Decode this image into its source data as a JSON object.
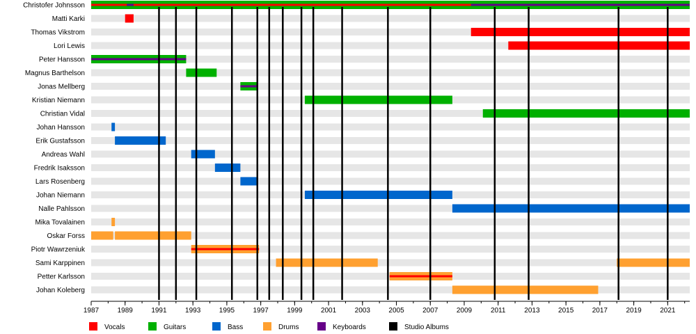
{
  "chart_data": {
    "type": "timeline",
    "title": "",
    "xlabel": "",
    "ylabel": "",
    "xlim": [
      1987,
      2022.3
    ],
    "x_ticks": [
      "1987",
      "1989",
      "1991",
      "1993",
      "1995",
      "1997",
      "1999",
      "2001",
      "2003",
      "2005",
      "2007",
      "2009",
      "2011",
      "2013",
      "2015",
      "2017",
      "2019",
      "2021"
    ],
    "members": [
      {
        "name": "Christofer Johnsson"
      },
      {
        "name": "Matti Karki"
      },
      {
        "name": "Thomas Vikstrom"
      },
      {
        "name": "Lori Lewis"
      },
      {
        "name": "Peter Hansson"
      },
      {
        "name": "Magnus Barthelson"
      },
      {
        "name": "Jonas Mellberg"
      },
      {
        "name": "Kristian Niemann"
      },
      {
        "name": "Christian Vidal"
      },
      {
        "name": "Johan Hansson"
      },
      {
        "name": "Erik Gustafsson"
      },
      {
        "name": "Andreas Wahl"
      },
      {
        "name": "Fredrik Isaksson"
      },
      {
        "name": "Lars Rosenberg"
      },
      {
        "name": "Johan Niemann"
      },
      {
        "name": "Nalle Pahlsson"
      },
      {
        "name": "Mika Tovalainen"
      },
      {
        "name": "Oskar Forss"
      },
      {
        "name": "Piotr Wawrzeniuk"
      },
      {
        "name": "Sami Karppinen"
      },
      {
        "name": "Petter Karlsson"
      },
      {
        "name": "Johan Koleberg"
      }
    ],
    "bars": [
      {
        "member": 0,
        "role": "guitars",
        "start": 1987.0,
        "end": 2022.3
      },
      {
        "member": 0,
        "role": "keyboards",
        "start": 1987.0,
        "end": 2022.3,
        "stripe": true
      },
      {
        "member": 0,
        "role": "vocals",
        "start": 1987.0,
        "end": 1989.1,
        "stripe": true
      },
      {
        "member": 0,
        "role": "vocals",
        "start": 1989.5,
        "end": 2009.4,
        "stripe": true
      },
      {
        "member": 1,
        "role": "vocals",
        "start": 1989.0,
        "end": 1989.5
      },
      {
        "member": 2,
        "role": "vocals",
        "start": 2009.4,
        "end": 2022.3
      },
      {
        "member": 3,
        "role": "vocals",
        "start": 2011.6,
        "end": 2022.3
      },
      {
        "member": 4,
        "role": "guitars",
        "start": 1987.0,
        "end": 1992.6
      },
      {
        "member": 4,
        "role": "keyboards",
        "start": 1987.0,
        "end": 1992.6,
        "stripe": true
      },
      {
        "member": 5,
        "role": "guitars",
        "start": 1992.6,
        "end": 1994.4
      },
      {
        "member": 6,
        "role": "guitars",
        "start": 1995.8,
        "end": 1996.8
      },
      {
        "member": 6,
        "role": "keyboards",
        "start": 1995.8,
        "end": 1996.8,
        "stripe": true
      },
      {
        "member": 7,
        "role": "guitars",
        "start": 1999.6,
        "end": 2008.3
      },
      {
        "member": 8,
        "role": "guitars",
        "start": 2010.1,
        "end": 2022.3
      },
      {
        "member": 9,
        "role": "bass",
        "start": 1988.2,
        "end": 1988.4
      },
      {
        "member": 10,
        "role": "bass",
        "start": 1988.4,
        "end": 1991.4
      },
      {
        "member": 11,
        "role": "bass",
        "start": 1992.9,
        "end": 1994.3
      },
      {
        "member": 12,
        "role": "bass",
        "start": 1994.3,
        "end": 1995.8
      },
      {
        "member": 13,
        "role": "bass",
        "start": 1995.8,
        "end": 1996.8
      },
      {
        "member": 14,
        "role": "bass",
        "start": 1999.6,
        "end": 2008.3
      },
      {
        "member": 15,
        "role": "bass",
        "start": 2008.3,
        "end": 2022.3
      },
      {
        "member": 16,
        "role": "drums",
        "start": 1988.2,
        "end": 1988.4
      },
      {
        "member": 17,
        "role": "drums",
        "start": 1987.0,
        "end": 1988.3
      },
      {
        "member": 17,
        "role": "drums",
        "start": 1988.4,
        "end": 1992.9
      },
      {
        "member": 18,
        "role": "drums",
        "start": 1992.9,
        "end": 1996.9
      },
      {
        "member": 18,
        "role": "vocals",
        "start": 1992.9,
        "end": 1996.9,
        "stripe": true
      },
      {
        "member": 19,
        "role": "drums",
        "start": 1997.9,
        "end": 2003.9
      },
      {
        "member": 19,
        "role": "drums",
        "start": 2018.0,
        "end": 2022.3
      },
      {
        "member": 20,
        "role": "drums",
        "start": 2004.6,
        "end": 2008.3
      },
      {
        "member": 20,
        "role": "vocals",
        "start": 2004.6,
        "end": 2008.3,
        "stripe": true
      },
      {
        "member": 21,
        "role": "drums",
        "start": 2008.3,
        "end": 2016.9
      }
    ],
    "album_years": [
      1991.0,
      1992.0,
      1993.2,
      1995.3,
      1996.8,
      1997.5,
      1998.3,
      1999.4,
      2000.1,
      2001.8,
      2004.5,
      2007.0,
      2010.8,
      2012.8,
      2018.1,
      2021.0
    ],
    "legend_position": "bottom",
    "legend": [
      {
        "label": "Vocals",
        "color": "#ff0000"
      },
      {
        "label": "Guitars",
        "color": "#00b000"
      },
      {
        "label": "Bass",
        "color": "#0066cc"
      },
      {
        "label": "Drums",
        "color": "#ffa030"
      },
      {
        "label": "Keyboards",
        "color": "#660088"
      },
      {
        "label": "Studio Albums",
        "color": "#000000"
      }
    ],
    "role_colors": {
      "vocals": "#ff0000",
      "guitars": "#00b000",
      "bass": "#0066cc",
      "drums": "#ffa030",
      "keyboards": "#660088"
    }
  }
}
